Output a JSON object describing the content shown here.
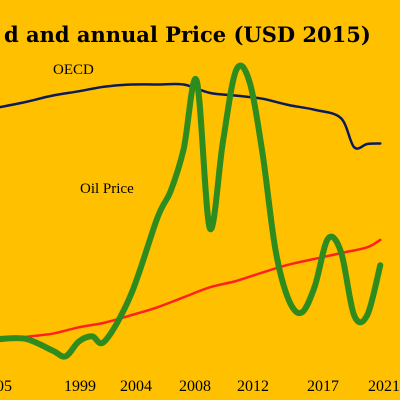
{
  "chart_data": {
    "type": "line",
    "title": "d and annual Price (USD 2015)",
    "x_ticks": [
      "05",
      "1999",
      "2004",
      "2008",
      "2012",
      "2017",
      "2021"
    ],
    "series": [
      {
        "name": "OECD",
        "color": "#0a1a5c",
        "x": [
          1993,
          1995,
          1997,
          1999,
          2001,
          2003,
          2005,
          2007,
          2009,
          2011,
          2013,
          2015,
          2017,
          2019,
          2020,
          2021,
          2022
        ],
        "y": [
          44.0,
          45.0,
          46.2,
          47.0,
          47.9,
          48.3,
          48.3,
          48.3,
          46.7,
          46.2,
          45.6,
          44.4,
          43.5,
          41.9,
          36.4,
          37.0,
          37.1
        ]
      },
      {
        "name": "Oil Price",
        "color": "#2e8b1e",
        "x": [
          1993,
          1995,
          1997,
          1998,
          1999,
          2000,
          2001,
          2003,
          2005,
          2006,
          2007,
          2008,
          2009,
          2010,
          2011,
          2012,
          2013,
          2014,
          2015,
          2016,
          2017,
          2018,
          2019,
          2020,
          2021,
          2022
        ],
        "y": [
          0.0,
          0.0,
          -2.2,
          -3.3,
          -0.5,
          0.5,
          -0.4,
          8.5,
          23.0,
          28.0,
          36.0,
          49.0,
          21.0,
          37.5,
          51.0,
          49.0,
          35.5,
          17.0,
          7.5,
          5.0,
          10.0,
          19.0,
          16.5,
          4.5,
          4.5,
          14.0
        ]
      },
      {
        "name": "",
        "color": "#ff2020",
        "x": [
          1993,
          1995,
          1997,
          1999,
          2001,
          2003,
          2005,
          2007,
          2009,
          2011,
          2013,
          2015,
          2017,
          2019,
          2021,
          2022
        ],
        "y": [
          -0.4,
          0.4,
          1.0,
          2.2,
          3.1,
          4.5,
          6.0,
          7.9,
          9.8,
          11.0,
          12.6,
          14.1,
          15.2,
          16.3,
          17.4,
          18.8
        ]
      }
    ],
    "xlim": [
      1993,
      2023.5
    ],
    "ylim": [
      -4,
      52
    ],
    "grid": false,
    "legend": "inline labels"
  },
  "labels": {
    "oecd": "OECD",
    "oil_price": "Oil Price"
  }
}
